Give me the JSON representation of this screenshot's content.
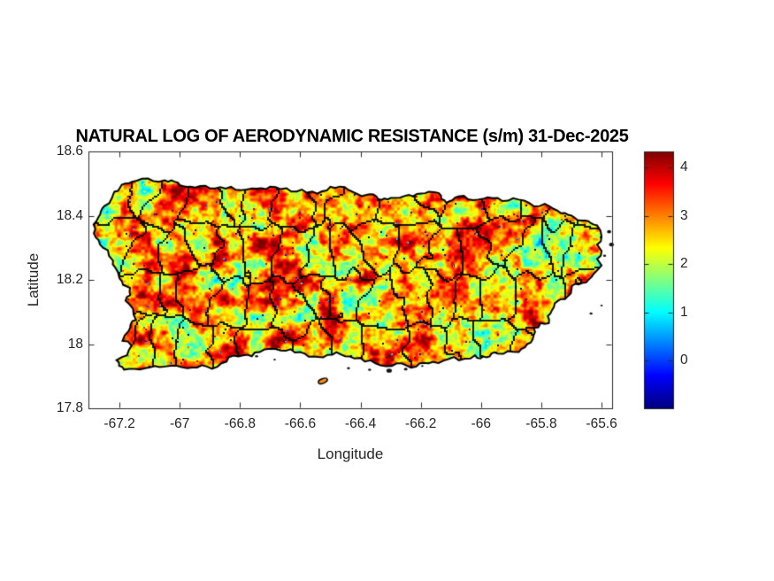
{
  "chart_data": {
    "type": "heatmap",
    "title": "NATURAL LOG OF AERODYNAMIC RESISTANCE (s/m) 31-Dec-2025",
    "xlabel": "Longitude",
    "ylabel": "Latitude",
    "xlim": [
      -67.303,
      -65.565
    ],
    "ylim": [
      17.8,
      18.6
    ],
    "xtick_values": [
      -67.2,
      -67,
      -66.8,
      -66.6,
      -66.4,
      -66.2,
      -66,
      -65.8,
      -65.6
    ],
    "xtick_labels": [
      "-67.2",
      "-67",
      "-66.8",
      "-66.6",
      "-66.4",
      "-66.2",
      "-66",
      "-65.8",
      "-65.6"
    ],
    "ytick_values": [
      18.6,
      18.4,
      18.2,
      18,
      17.8
    ],
    "ytick_labels": [
      "18.6",
      "18.4",
      "18.2",
      "18",
      "17.8"
    ],
    "grid": false,
    "legend": "none",
    "colorbar": {
      "position": "right",
      "colormap": "jet",
      "clim": [
        -0.98,
        4.33
      ],
      "tick_values": [
        4,
        3,
        2,
        1,
        0
      ],
      "tick_labels": [
        "4",
        "3",
        "2",
        "1",
        "0"
      ]
    },
    "styles": {
      "background": "#ffffff",
      "axis_color": "#262626",
      "tick_label_color": "#262626",
      "title_color": "#000000",
      "boundary_color": "#000000",
      "coast_color": "#000000",
      "islet_fill": "#fa8c14"
    },
    "map": {
      "region": "Puerto Rico",
      "boundary_type": "municipalities",
      "typical_value_range": [
        1.5,
        3.8
      ],
      "outline": [
        [
          -67.285,
          18.345
        ],
        [
          -67.27,
          18.395
        ],
        [
          -67.25,
          18.43
        ],
        [
          -67.225,
          18.455
        ],
        [
          -67.16,
          18.505
        ],
        [
          -67.125,
          18.515
        ],
        [
          -67.05,
          18.51
        ],
        [
          -66.965,
          18.49
        ],
        [
          -66.9,
          18.485
        ],
        [
          -66.83,
          18.49
        ],
        [
          -66.76,
          18.485
        ],
        [
          -66.7,
          18.49
        ],
        [
          -66.63,
          18.475
        ],
        [
          -66.56,
          18.475
        ],
        [
          -66.5,
          18.49
        ],
        [
          -66.44,
          18.48
        ],
        [
          -66.38,
          18.465
        ],
        [
          -66.3,
          18.455
        ],
        [
          -66.24,
          18.465
        ],
        [
          -66.185,
          18.47
        ],
        [
          -66.14,
          18.47
        ],
        [
          -66.115,
          18.44
        ],
        [
          -66.075,
          18.46
        ],
        [
          -66.01,
          18.45
        ],
        [
          -65.945,
          18.455
        ],
        [
          -65.875,
          18.45
        ],
        [
          -65.805,
          18.43
        ],
        [
          -65.745,
          18.415
        ],
        [
          -65.7,
          18.4
        ],
        [
          -65.655,
          18.385
        ],
        [
          -65.615,
          18.37
        ],
        [
          -65.6,
          18.335
        ],
        [
          -65.615,
          18.31
        ],
        [
          -65.6,
          18.29
        ],
        [
          -65.615,
          18.265
        ],
        [
          -65.6,
          18.245
        ],
        [
          -65.625,
          18.22
        ],
        [
          -65.665,
          18.19
        ],
        [
          -65.7,
          18.17
        ],
        [
          -65.735,
          18.14
        ],
        [
          -65.765,
          18.105
        ],
        [
          -65.775,
          18.065
        ],
        [
          -65.825,
          18.05
        ],
        [
          -65.835,
          18.005
        ],
        [
          -65.875,
          17.975
        ],
        [
          -65.945,
          17.97
        ],
        [
          -66.02,
          17.965
        ],
        [
          -66.09,
          17.96
        ],
        [
          -66.16,
          17.945
        ],
        [
          -66.215,
          17.93
        ],
        [
          -66.28,
          17.94
        ],
        [
          -66.35,
          17.94
        ],
        [
          -66.42,
          17.955
        ],
        [
          -66.48,
          17.975
        ],
        [
          -66.54,
          17.96
        ],
        [
          -66.6,
          17.975
        ],
        [
          -66.665,
          17.98
        ],
        [
          -66.735,
          17.975
        ],
        [
          -66.79,
          17.965
        ],
        [
          -66.845,
          17.945
        ],
        [
          -66.91,
          17.93
        ],
        [
          -66.975,
          17.925
        ],
        [
          -67.05,
          17.93
        ],
        [
          -67.115,
          17.925
        ],
        [
          -67.185,
          17.92
        ],
        [
          -67.21,
          17.95
        ],
        [
          -67.175,
          17.965
        ],
        [
          -67.16,
          17.995
        ],
        [
          -67.19,
          18.01
        ],
        [
          -67.17,
          18.04
        ],
        [
          -67.145,
          18.075
        ],
        [
          -67.155,
          18.11
        ],
        [
          -67.18,
          18.135
        ],
        [
          -67.165,
          18.175
        ],
        [
          -67.2,
          18.205
        ],
        [
          -67.215,
          18.24
        ],
        [
          -67.235,
          18.275
        ],
        [
          -67.255,
          18.3
        ]
      ],
      "islets": [
        [
          -66.525,
          17.885,
          0.016
        ],
        [
          -66.745,
          17.962,
          0.005
        ],
        [
          -66.685,
          17.952,
          0.004
        ],
        [
          -66.44,
          17.925,
          0.005
        ],
        [
          -66.37,
          17.92,
          0.005
        ],
        [
          -66.305,
          17.917,
          0.009
        ],
        [
          -66.25,
          17.922,
          0.006
        ],
        [
          -66.195,
          17.932,
          0.004
        ],
        [
          -65.575,
          18.35,
          0.007
        ],
        [
          -65.567,
          18.31,
          0.008
        ],
        [
          -65.59,
          18.275,
          0.005
        ],
        [
          -65.635,
          18.095,
          0.005
        ],
        [
          -65.6,
          18.12,
          0.004
        ]
      ],
      "green_zones": [
        [
          -65.775,
          18.295,
          0.075,
          1.5
        ],
        [
          -67.03,
          18.03,
          0.055,
          0.9
        ],
        [
          -66.37,
          18.33,
          0.05,
          0.85
        ],
        [
          -66.47,
          18.2,
          0.04,
          0.6
        ]
      ],
      "red_zones": [
        [
          -66.52,
          18.08,
          0.05,
          0.9
        ],
        [
          -66.9,
          18.43,
          0.035,
          0.55
        ],
        [
          -66.02,
          18.35,
          0.03,
          0.5
        ]
      ]
    }
  }
}
